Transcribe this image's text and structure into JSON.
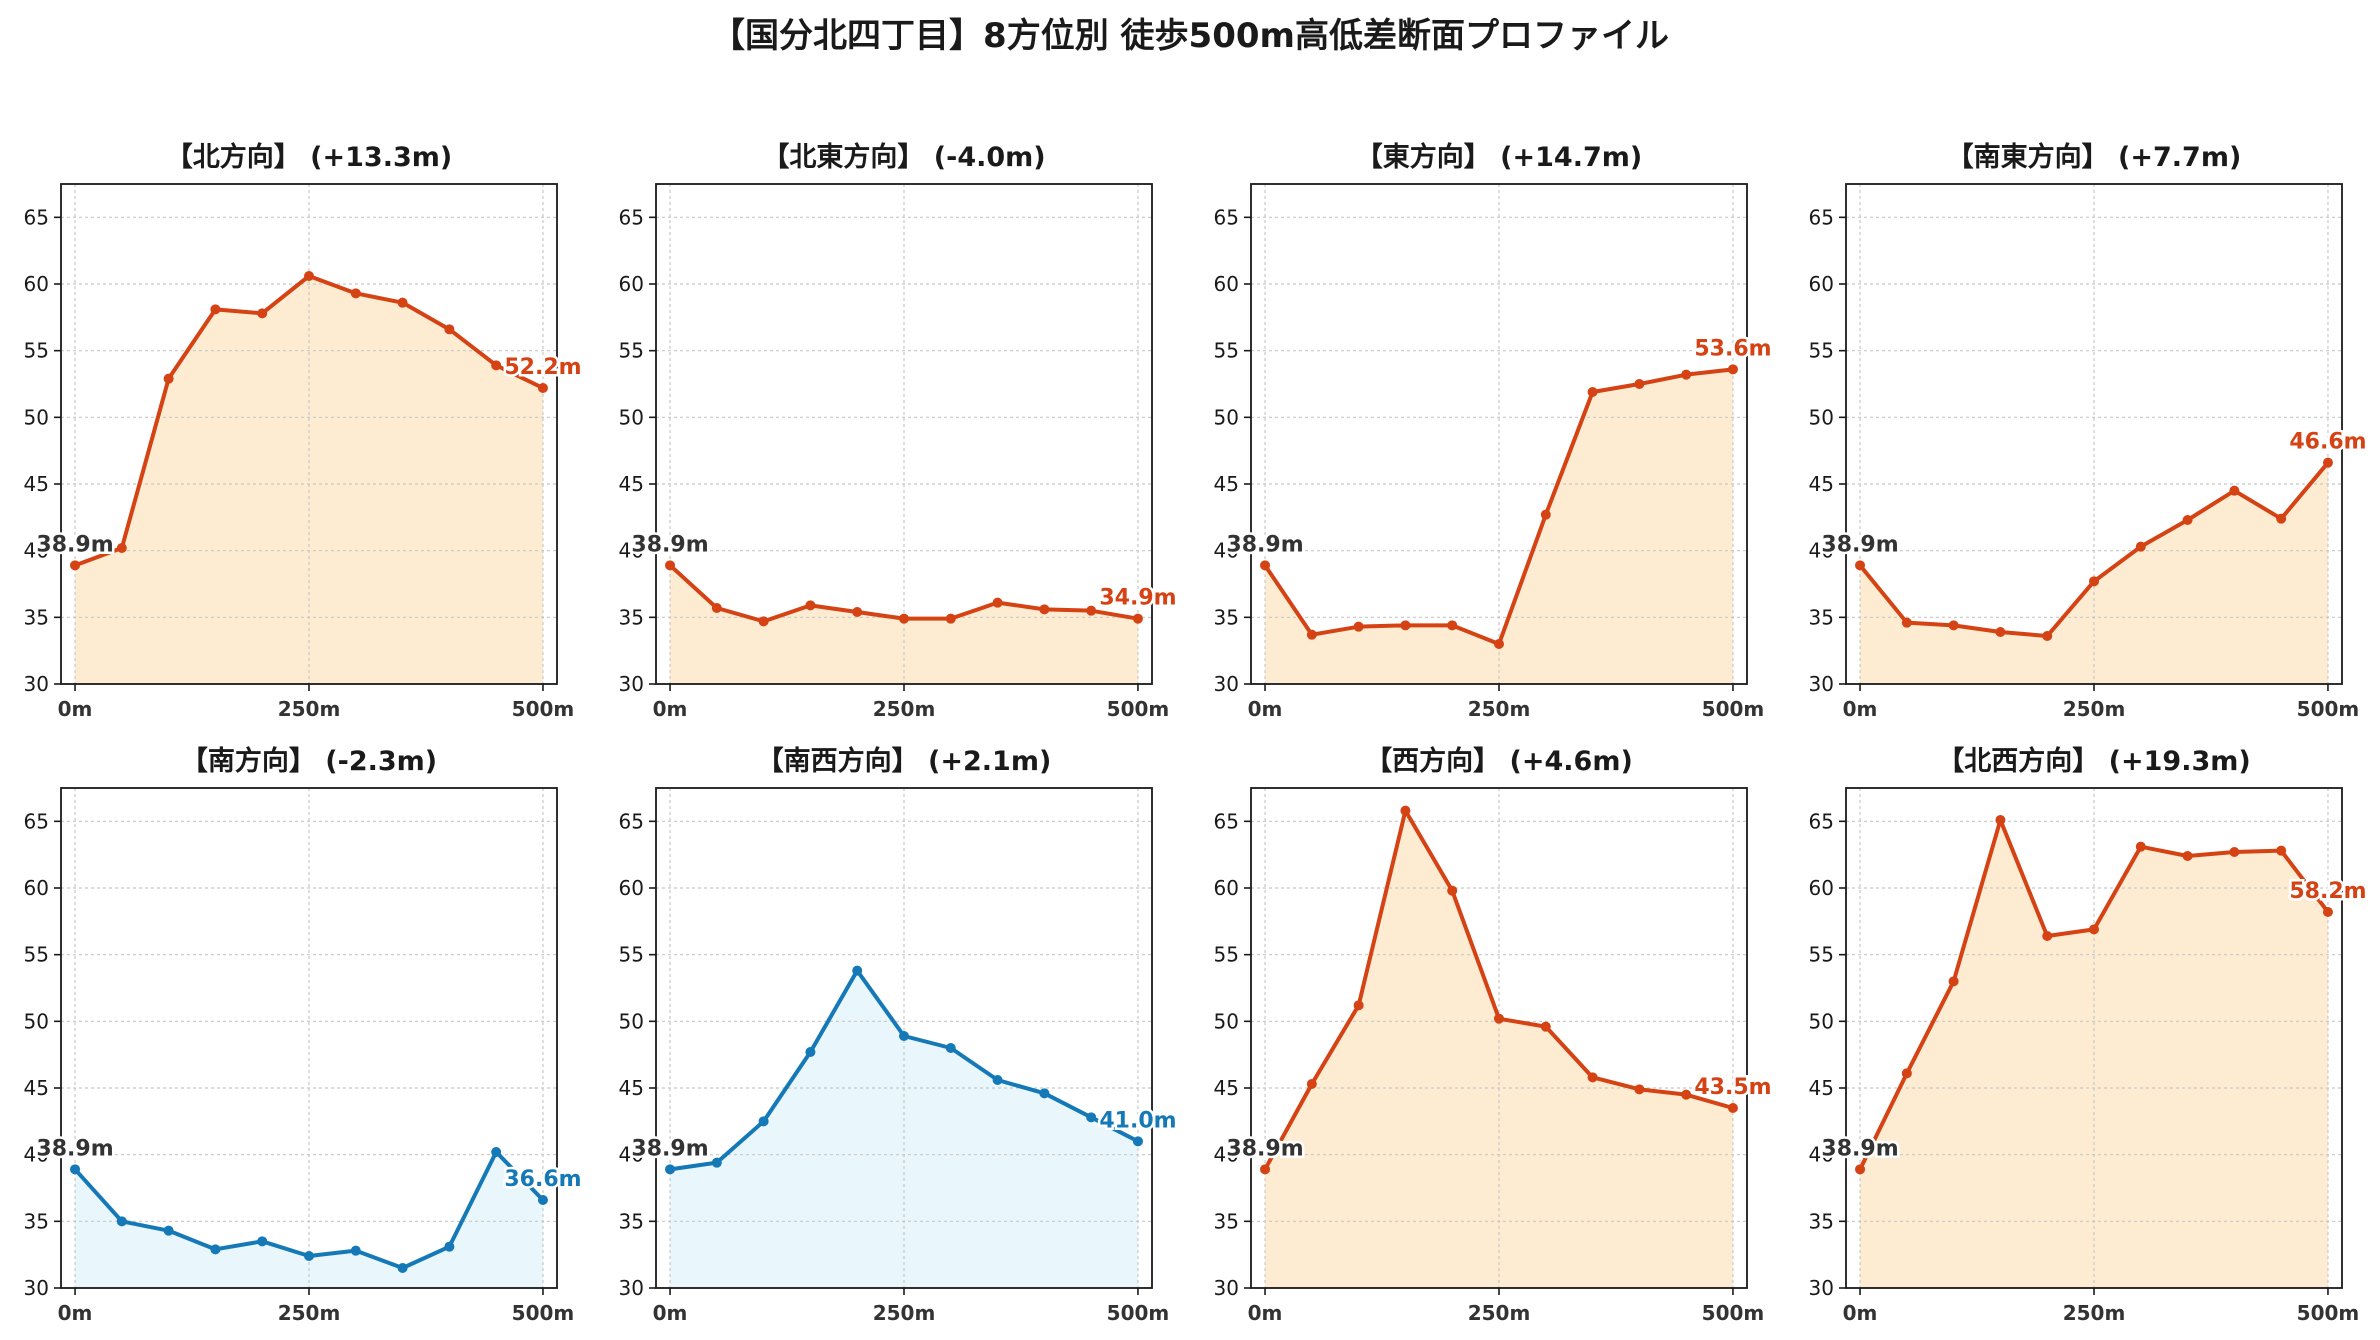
{
  "title": "【国分北四丁目】8方位別 徒歩500m高低差断面プロファイル",
  "colors": {
    "uphill": "#d54214",
    "uphill_fill": "#fdecd2",
    "downhill": "#1479b6",
    "downhill_fill": "#e9f6fc",
    "start_label": "#333333",
    "grid": "#c8c8c8"
  },
  "chart_data": [
    {
      "type": "line",
      "title": "【北方向】 (+13.3m)",
      "trend": "uphill",
      "x": [
        0,
        50,
        100,
        150,
        200,
        250,
        300,
        350,
        400,
        450,
        500
      ],
      "xticks": [
        "0m",
        "250m",
        "500m"
      ],
      "xtick_values": [
        0,
        250,
        500
      ],
      "ylim": [
        30,
        67.5
      ],
      "yticks": [
        30,
        35,
        40,
        45,
        50,
        55,
        60,
        65
      ],
      "grid": true,
      "values": [
        38.9,
        40.2,
        52.9,
        58.1,
        57.8,
        60.6,
        59.3,
        58.6,
        56.6,
        53.9,
        52.2
      ],
      "start_label": "38.9m",
      "end_label": "52.2m"
    },
    {
      "type": "line",
      "title": "【北東方向】 (-4.0m)",
      "trend": "uphill",
      "x": [
        0,
        50,
        100,
        150,
        200,
        250,
        300,
        350,
        400,
        450,
        500
      ],
      "xticks": [
        "0m",
        "250m",
        "500m"
      ],
      "xtick_values": [
        0,
        250,
        500
      ],
      "ylim": [
        30,
        67.5
      ],
      "yticks": [
        30,
        35,
        40,
        45,
        50,
        55,
        60,
        65
      ],
      "grid": true,
      "values": [
        38.9,
        35.7,
        34.7,
        35.9,
        35.4,
        34.9,
        34.9,
        36.1,
        35.6,
        35.5,
        34.9
      ],
      "start_label": "38.9m",
      "end_label": "34.9m"
    },
    {
      "type": "line",
      "title": "【東方向】 (+14.7m)",
      "trend": "uphill",
      "x": [
        0,
        50,
        100,
        150,
        200,
        250,
        300,
        350,
        400,
        450,
        500
      ],
      "xticks": [
        "0m",
        "250m",
        "500m"
      ],
      "xtick_values": [
        0,
        250,
        500
      ],
      "ylim": [
        30,
        67.5
      ],
      "yticks": [
        30,
        35,
        40,
        45,
        50,
        55,
        60,
        65
      ],
      "grid": true,
      "values": [
        38.9,
        33.7,
        34.3,
        34.4,
        34.4,
        33.0,
        42.7,
        51.9,
        52.5,
        53.2,
        53.6
      ],
      "start_label": "38.9m",
      "end_label": "53.6m"
    },
    {
      "type": "line",
      "title": "【南東方向】 (+7.7m)",
      "trend": "uphill",
      "x": [
        0,
        50,
        100,
        150,
        200,
        250,
        300,
        350,
        400,
        450,
        500
      ],
      "xticks": [
        "0m",
        "250m",
        "500m"
      ],
      "xtick_values": [
        0,
        250,
        500
      ],
      "ylim": [
        30,
        67.5
      ],
      "yticks": [
        30,
        35,
        40,
        45,
        50,
        55,
        60,
        65
      ],
      "grid": true,
      "values": [
        38.9,
        34.6,
        34.4,
        33.9,
        33.6,
        37.7,
        40.3,
        42.3,
        44.5,
        42.4,
        46.6
      ],
      "start_label": "38.9m",
      "end_label": "46.6m"
    },
    {
      "type": "line",
      "title": "【南方向】 (-2.3m)",
      "trend": "downhill",
      "x": [
        0,
        50,
        100,
        150,
        200,
        250,
        300,
        350,
        400,
        450,
        500
      ],
      "xticks": [
        "0m",
        "250m",
        "500m"
      ],
      "xtick_values": [
        0,
        250,
        500
      ],
      "ylim": [
        30,
        67.5
      ],
      "yticks": [
        30,
        35,
        40,
        45,
        50,
        55,
        60,
        65
      ],
      "grid": true,
      "values": [
        38.9,
        35.0,
        34.3,
        32.9,
        33.5,
        32.4,
        32.8,
        31.5,
        33.1,
        40.2,
        36.6
      ],
      "start_label": "38.9m",
      "end_label": "36.6m"
    },
    {
      "type": "line",
      "title": "【南西方向】 (+2.1m)",
      "trend": "downhill",
      "x": [
        0,
        50,
        100,
        150,
        200,
        250,
        300,
        350,
        400,
        450,
        500
      ],
      "xticks": [
        "0m",
        "250m",
        "500m"
      ],
      "xtick_values": [
        0,
        250,
        500
      ],
      "ylim": [
        30,
        67.5
      ],
      "yticks": [
        30,
        35,
        40,
        45,
        50,
        55,
        60,
        65
      ],
      "grid": true,
      "values": [
        38.9,
        39.4,
        42.5,
        47.7,
        53.8,
        48.9,
        48.0,
        45.6,
        44.6,
        42.8,
        41.0
      ],
      "start_label": "38.9m",
      "end_label": "41.0m"
    },
    {
      "type": "line",
      "title": "【西方向】 (+4.6m)",
      "trend": "uphill",
      "x": [
        0,
        50,
        100,
        150,
        200,
        250,
        300,
        350,
        400,
        450,
        500
      ],
      "xticks": [
        "0m",
        "250m",
        "500m"
      ],
      "xtick_values": [
        0,
        250,
        500
      ],
      "ylim": [
        30,
        67.5
      ],
      "yticks": [
        30,
        35,
        40,
        45,
        50,
        55,
        60,
        65
      ],
      "grid": true,
      "values": [
        38.9,
        45.3,
        51.2,
        65.8,
        59.8,
        50.2,
        49.6,
        45.8,
        44.9,
        44.5,
        43.5
      ],
      "start_label": "38.9m",
      "end_label": "43.5m"
    },
    {
      "type": "line",
      "title": "【北西方向】 (+19.3m)",
      "trend": "uphill",
      "x": [
        0,
        50,
        100,
        150,
        200,
        250,
        300,
        350,
        400,
        450,
        500
      ],
      "xticks": [
        "0m",
        "250m",
        "500m"
      ],
      "xtick_values": [
        0,
        250,
        500
      ],
      "ylim": [
        30,
        67.5
      ],
      "yticks": [
        30,
        35,
        40,
        45,
        50,
        55,
        60,
        65
      ],
      "grid": true,
      "values": [
        38.9,
        46.1,
        53.0,
        65.1,
        56.4,
        56.9,
        63.1,
        62.4,
        62.7,
        62.8,
        58.2
      ],
      "start_label": "38.9m",
      "end_label": "58.2m"
    }
  ]
}
